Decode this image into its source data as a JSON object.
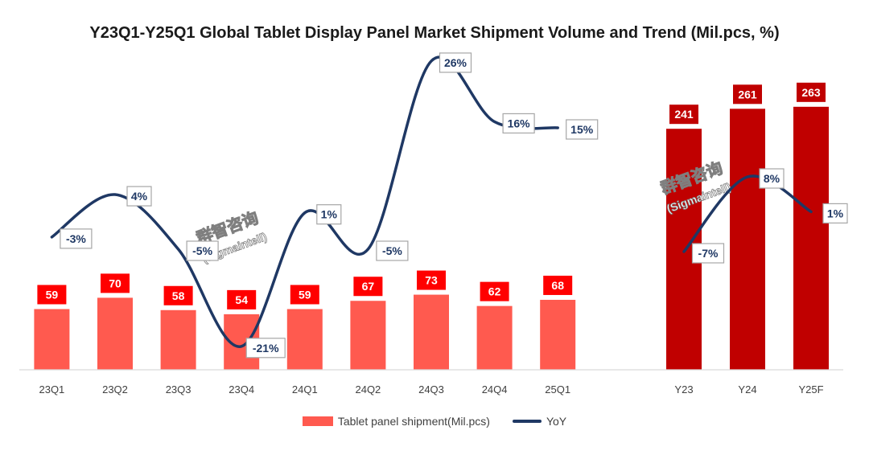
{
  "chart_data": {
    "type": "bar+line",
    "title": "Y23Q1-Y25Q1 Global Tablet Display Panel Market Shipment Volume and Trend (Mil.pcs, %)",
    "quarterly": {
      "categories": [
        "23Q1",
        "23Q2",
        "23Q3",
        "23Q4",
        "24Q1",
        "24Q2",
        "24Q3",
        "24Q4",
        "25Q1"
      ],
      "shipment": [
        59,
        70,
        58,
        54,
        59,
        67,
        73,
        62,
        68
      ],
      "shipment_labels": [
        "59",
        "70",
        "58",
        "54",
        "59",
        "67",
        "73",
        "62",
        "68"
      ],
      "yoy": [
        -3,
        4,
        -5,
        -21,
        1,
        -5,
        26,
        16,
        15
      ],
      "yoy_labels": [
        "-3%",
        "4%",
        "-5%",
        "-21%",
        "1%",
        "-5%",
        "26%",
        "16%",
        "15%"
      ]
    },
    "annual": {
      "categories": [
        "Y23",
        "Y24",
        "Y25F"
      ],
      "shipment": [
        241,
        261,
        263
      ],
      "shipment_labels": [
        "241",
        "261",
        "263"
      ],
      "yoy": [
        -7,
        8,
        1
      ],
      "yoy_labels": [
        "-7%",
        "8%",
        "1%"
      ]
    },
    "series": [
      {
        "name": "Tablet panel shipment(Mil.pcs)",
        "kind": "bar"
      },
      {
        "name": "YoY",
        "kind": "line"
      }
    ],
    "legend_position": "bottom",
    "grid": false
  },
  "watermark": {
    "main": "群智咨询",
    "sub": "(Sigmaintell)"
  },
  "colors": {
    "quarter_bar": "#ff5a4f",
    "annual_bar": "#c00000",
    "yoy_line": "#1f3864",
    "label_red": "#ff0000"
  }
}
